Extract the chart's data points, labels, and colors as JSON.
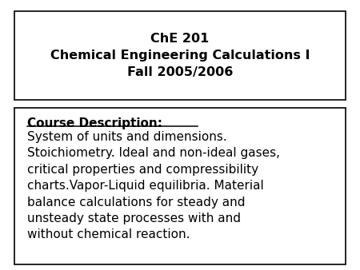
{
  "title_line1": "ChE 201",
  "title_line2": "Chemical Engineering Calculations I",
  "title_line3": "Fall 2005/2006",
  "desc_header": "Course Description:",
  "desc_body": "System of units and dimensions.\nStoichiometry. Ideal and non-ideal gases,\ncritical properties and compressibility\ncharts.Vapor-Liquid equilibria. Material\nbalance calculations for steady and\nunsteady state processes with and\nwithout chemical reaction.",
  "bg_color": "#ffffff",
  "text_color": "#000000",
  "title_fontsize": 11.5,
  "body_fontsize": 11.0
}
